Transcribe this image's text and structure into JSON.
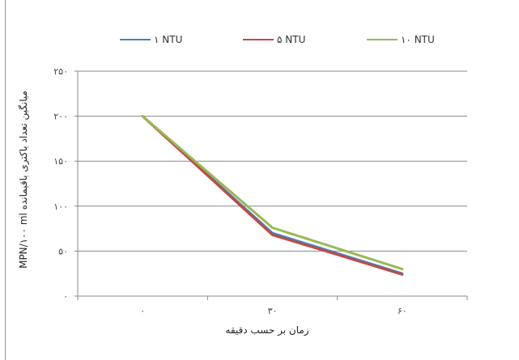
{
  "chart_data": {
    "type": "line",
    "title": "",
    "xlabel": "زمان بر حسب دقیقه",
    "ylabel": "میانگین تعداد باکتری باقیمانده MPN/۱۰۰ ml",
    "categories": [
      "۰",
      "۳۰",
      "۶۰"
    ],
    "y_ticks": [
      "۰",
      "۵۰",
      "۱۰۰",
      "۱۵۰",
      "۲۰۰",
      "۲۵۰"
    ],
    "ylim": [
      0,
      250
    ],
    "grid": true,
    "legend_position": "top",
    "series": [
      {
        "name": "۱ NTU",
        "values": [
          200,
          70,
          25
        ],
        "color": "#4a7ebb"
      },
      {
        "name": "۵ NTU",
        "values": [
          200,
          68,
          24
        ],
        "color": "#be4b48"
      },
      {
        "name": "۱۰ NTU",
        "values": [
          200,
          76,
          30
        ],
        "color": "#98b954"
      }
    ]
  }
}
